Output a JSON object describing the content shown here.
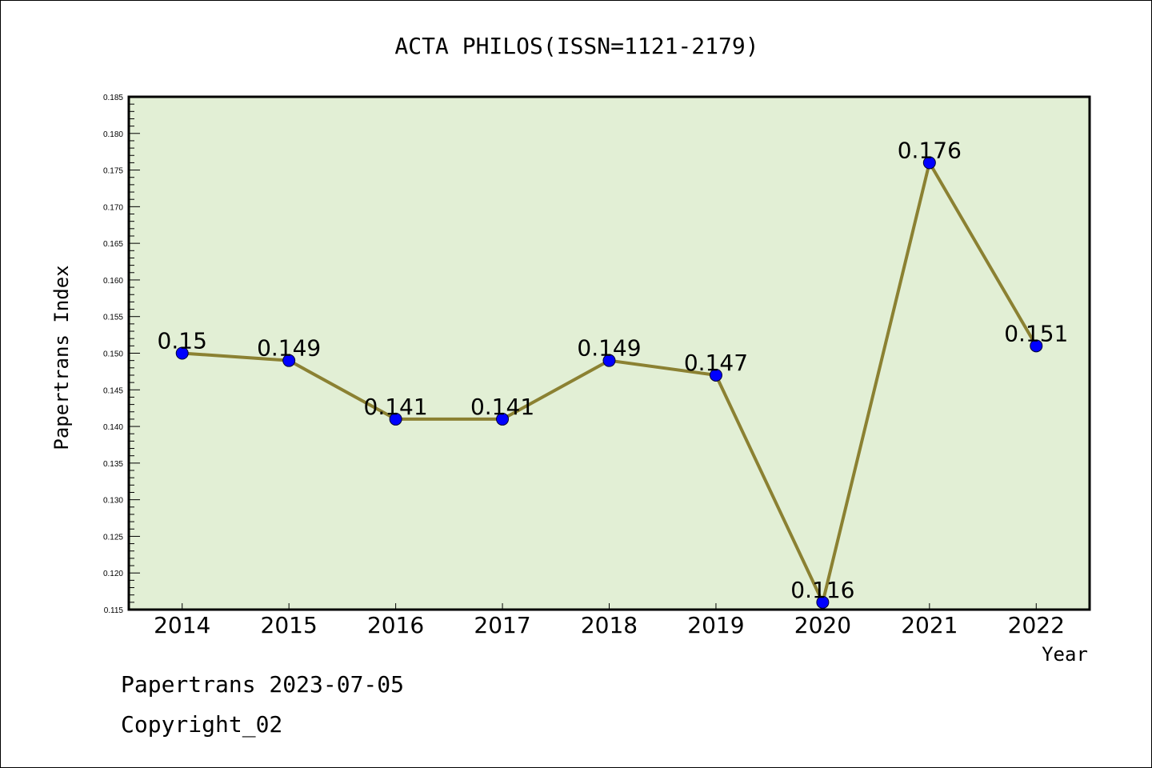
{
  "chart_data": {
    "type": "line",
    "title": "ACTA PHILOS(ISSN=1121-2179)",
    "xlabel": "Year",
    "ylabel": "Papertrans Index",
    "categories": [
      "2014",
      "2015",
      "2016",
      "2017",
      "2018",
      "2019",
      "2020",
      "2021",
      "2022"
    ],
    "series": [
      {
        "values": [
          0.15,
          0.149,
          0.141,
          0.141,
          0.149,
          0.147,
          0.116,
          0.176,
          0.151
        ],
        "value_labels": [
          "0.15",
          "0.149",
          "0.141",
          "0.141",
          "0.149",
          "0.147",
          "0.116",
          "0.176",
          "0.151"
        ]
      }
    ],
    "ylim": [
      0.115,
      0.185
    ],
    "yticks": [
      "0.115",
      "0.120",
      "0.125",
      "0.130",
      "0.135",
      "0.140",
      "0.145",
      "0.150",
      "0.155",
      "0.160",
      "0.165",
      "0.170",
      "0.175",
      "0.180",
      "0.185"
    ],
    "grid": false,
    "colors": {
      "plot_background": "#e2efd5",
      "line": "#8b8132",
      "marker": "#0000ff"
    }
  },
  "footer": {
    "line1": "Papertrans 2023-07-05",
    "line2": "Copyright_02"
  }
}
